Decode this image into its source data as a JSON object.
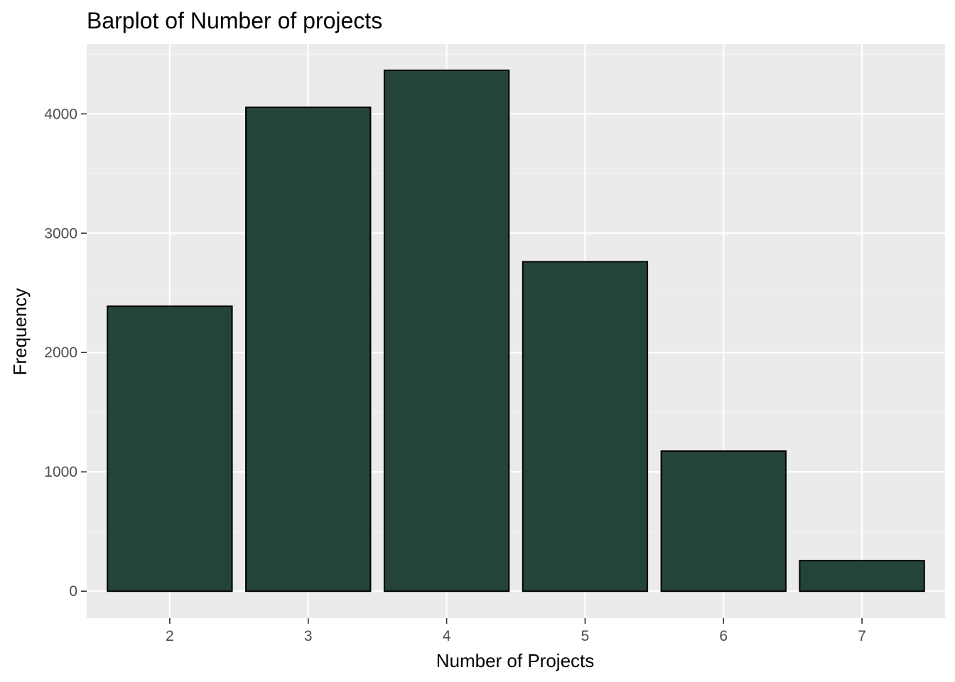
{
  "chart_data": {
    "type": "bar",
    "title": "Barplot of Number of projects",
    "xlabel": "Number of Projects",
    "ylabel": "Frequency",
    "categories": [
      "2",
      "3",
      "4",
      "5",
      "6",
      "7"
    ],
    "values": [
      2388,
      4055,
      4365,
      2761,
      1174,
      256
    ],
    "ylim": [
      -225,
      4585
    ],
    "yticks": [
      0,
      1000,
      2000,
      3000,
      4000
    ],
    "grid": true,
    "colors": {
      "panel_background": "#ebebeb",
      "grid_major": "#ffffff",
      "grid_minor": "#f5f5f5",
      "bar_fill": "#24443a",
      "bar_outline": "#000000",
      "tick_text": "#4d4d4d",
      "tick_mark": "#333333"
    }
  }
}
